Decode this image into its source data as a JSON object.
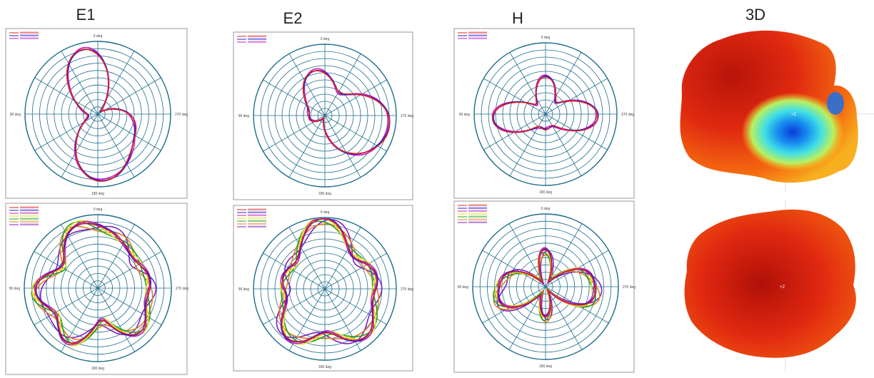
{
  "panels": [
    {
      "title": "E1"
    },
    {
      "title": "E2"
    },
    {
      "title": "H"
    },
    {
      "title": "3D"
    }
  ],
  "angle_labels": {
    "top": "0 deg",
    "left": "90 deg",
    "right": "270 deg",
    "bottom": "180 deg"
  },
  "axis_3d_label": "+Z"
}
